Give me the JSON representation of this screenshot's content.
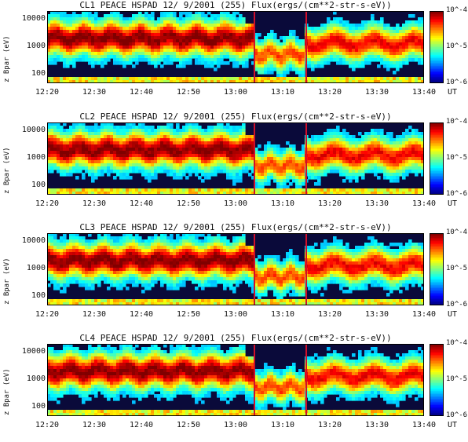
{
  "chart_data": [
    {
      "type": "heatmap",
      "title": "CL1 PEACE HSPAD 12/ 9/2001 (255) Flux(ergs/(cm**2-str-s-eV))",
      "ylabel": "z Bpar (eV)",
      "x_ticks": [
        "12:20",
        "12:30",
        "12:40",
        "12:50",
        "13:00",
        "13:10",
        "13:20",
        "13:30",
        "13:40"
      ],
      "x_unit": "UT",
      "y_ticks": [
        "10000",
        "1000",
        "100"
      ],
      "colorbar_ticks": [
        "10^-4",
        "10^-5",
        "10^-6"
      ],
      "ylim": [
        50,
        20000
      ],
      "log_y": true
    },
    {
      "type": "heatmap",
      "title": "CL2 PEACE HSPAD 12/ 9/2001 (255) Flux(ergs/(cm**2-str-s-eV))",
      "ylabel": "z Bpar (eV)",
      "x_ticks": [
        "12:20",
        "12:30",
        "12:40",
        "12:50",
        "13:00",
        "13:10",
        "13:20",
        "13:30",
        "13:40"
      ],
      "x_unit": "UT",
      "y_ticks": [
        "10000",
        "1000",
        "100"
      ],
      "colorbar_ticks": [
        "10^-4",
        "10^-5",
        "10^-6"
      ],
      "ylim": [
        50,
        20000
      ],
      "log_y": true
    },
    {
      "type": "heatmap",
      "title": "CL3 PEACE HSPAD 12/ 9/2001 (255) Flux(ergs/(cm**2-str-s-eV))",
      "ylabel": "z Bpar (eV)",
      "x_ticks": [
        "12:20",
        "12:30",
        "12:40",
        "12:50",
        "13:00",
        "13:10",
        "13:20",
        "13:30",
        "13:40"
      ],
      "x_unit": "UT",
      "y_ticks": [
        "10000",
        "1000",
        "100"
      ],
      "colorbar_ticks": [
        "10^-4",
        "10^-5",
        "10^-6"
      ],
      "ylim": [
        50,
        20000
      ],
      "log_y": true
    },
    {
      "type": "heatmap",
      "title": "CL4 PEACE HSPAD 12/ 9/2001 (255) Flux(ergs/(cm**2-str-s-eV))",
      "ylabel": "z Bpar (eV)",
      "x_ticks": [
        "12:20",
        "12:30",
        "12:40",
        "12:50",
        "13:00",
        "13:10",
        "13:20",
        "13:30",
        "13:40"
      ],
      "x_unit": "UT",
      "y_ticks": [
        "10000",
        "1000",
        "100"
      ],
      "colorbar_ticks": [
        "10^-4",
        "10^-5",
        "10^-6"
      ],
      "ylim": [
        50,
        20000
      ],
      "log_y": true
    }
  ],
  "markers": [
    "13:04",
    "13:15"
  ],
  "colors": {
    "marker": "#d0102a"
  }
}
